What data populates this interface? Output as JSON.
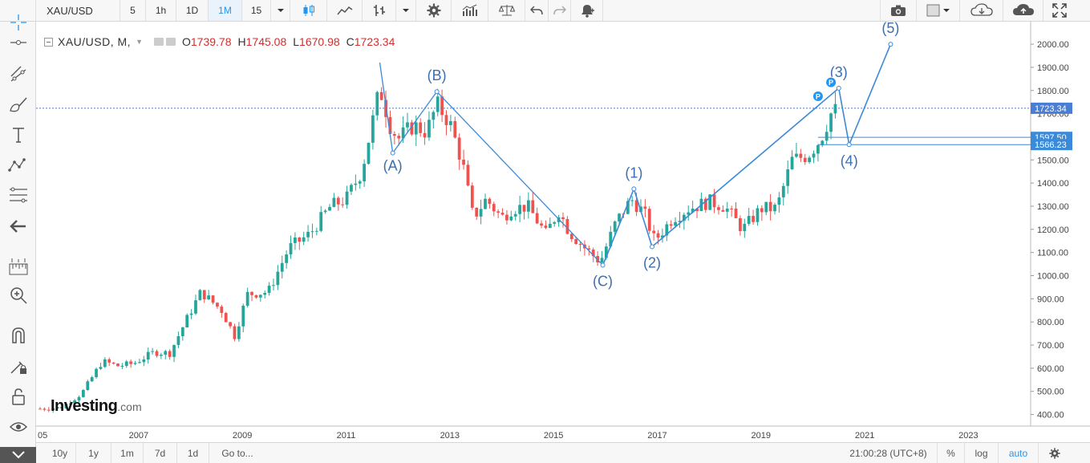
{
  "toolbar": {
    "symbol": "XAU/USD",
    "intervals": [
      "5",
      "1h",
      "1D",
      "1M",
      "15"
    ],
    "active_interval": "1M",
    "icons": [
      "candlestick-icon",
      "area-chart-icon",
      "bar-chart-icon",
      "settings-gear-icon",
      "indicators-icon",
      "scales-icon",
      "undo-icon",
      "redo-icon",
      "alert-icon",
      "camera-icon",
      "layout-icon",
      "cloud-download-icon",
      "cloud-upload-icon",
      "fullscreen-icon"
    ]
  },
  "sidebar": {
    "tools": [
      "crosshair-icon",
      "horizontal-line-icon",
      "trend-lines-icon",
      "brush-icon",
      "text-icon",
      "patterns-icon",
      "fib-tools-icon",
      "back-arrow-icon",
      "ruler-icon",
      "zoom-icon",
      "magnet-icon",
      "lock-drawing-icon",
      "lock-icon",
      "eye-icon",
      "collapse-icon"
    ]
  },
  "legend": {
    "symbol": "XAU/USD, M,",
    "open_label": "O",
    "open": "1739.78",
    "high_label": "H",
    "high": "1745.08",
    "low_label": "L",
    "low": "1670.98",
    "close_label": "C",
    "close": "1723.34"
  },
  "price_axis": {
    "ticks": [
      "2000.00",
      "1900.00",
      "1800.00",
      "1700.00",
      "1600.00",
      "1500.00",
      "1400.00",
      "1300.00",
      "1200.00",
      "1100.00",
      "1000.00",
      "900.00",
      "800.00",
      "700.00",
      "600.00",
      "500.00",
      "400.00"
    ],
    "last_price_label": "1723.34",
    "level_1_label": "1597.50",
    "level_2_label": "1566.23"
  },
  "time_axis": {
    "ticks": [
      "05",
      "2007",
      "2009",
      "2011",
      "2013",
      "2015",
      "2017",
      "2019",
      "2021",
      "2023"
    ]
  },
  "waves": {
    "a": "(A)",
    "b": "(B)",
    "c": "(C)",
    "w1": "(1)",
    "w2": "(2)",
    "w3": "(3)",
    "w4": "(4)",
    "w5": "(5)",
    "marker": "P"
  },
  "watermark": {
    "brand": "Investing",
    "tld": ".com"
  },
  "bottombar": {
    "ranges": [
      "10y",
      "1y",
      "1m",
      "7d",
      "1d"
    ],
    "goto": "Go to...",
    "time": "21:00:28 (UTC+8)",
    "percent": "%",
    "log": "log",
    "auto": "auto"
  },
  "colors": {
    "up": "#26a69a",
    "down": "#ef5350",
    "wave": "#3b8ad9",
    "last_price_badge": "#4a7dd4",
    "level_badge": "#3b8ad9"
  },
  "chart_data": {
    "type": "candlestick",
    "symbol": "XAU/USD",
    "interval": "M",
    "ylim": [
      350,
      2080
    ],
    "x_range": [
      2005.1,
      2024.2
    ],
    "yticks": [
      2000,
      1900,
      1800,
      1700,
      1600,
      1500,
      1400,
      1300,
      1200,
      1100,
      1000,
      900,
      800,
      700,
      600,
      500,
      400
    ],
    "xticks": [
      2005,
      2007,
      2009,
      2011,
      2013,
      2015,
      2017,
      2019,
      2021,
      2023
    ],
    "last_price": 1723.34,
    "levels": [
      1597.5,
      1566.23
    ],
    "price_path": [
      [
        2005.1,
        425
      ],
      [
        2005.5,
        430
      ],
      [
        2005.9,
        490
      ],
      [
        2006.3,
        630
      ],
      [
        2006.6,
        610
      ],
      [
        2006.9,
        620
      ],
      [
        2007.3,
        670
      ],
      [
        2007.6,
        665
      ],
      [
        2007.9,
        800
      ],
      [
        2008.2,
        930
      ],
      [
        2008.6,
        850
      ],
      [
        2008.85,
        740
      ],
      [
        2009.1,
        920
      ],
      [
        2009.5,
        930
      ],
      [
        2009.9,
        1120
      ],
      [
        2010.3,
        1180
      ],
      [
        2010.7,
        1300
      ],
      [
        2011.0,
        1330
      ],
      [
        2011.3,
        1450
      ],
      [
        2011.65,
        1810
      ],
      [
        2011.85,
        1650
      ],
      [
        2012.0,
        1590
      ],
      [
        2012.3,
        1650
      ],
      [
        2012.55,
        1620
      ],
      [
        2012.75,
        1740
      ],
      [
        2013.0,
        1660
      ],
      [
        2013.25,
        1480
      ],
      [
        2013.45,
        1250
      ],
      [
        2013.7,
        1330
      ],
      [
        2014.0,
        1250
      ],
      [
        2014.2,
        1290
      ],
      [
        2014.5,
        1300
      ],
      [
        2014.85,
        1180
      ],
      [
        2015.1,
        1280
      ],
      [
        2015.3,
        1190
      ],
      [
        2015.6,
        1120
      ],
      [
        2015.9,
        1060
      ],
      [
        2016.2,
        1230
      ],
      [
        2016.5,
        1330
      ],
      [
        2016.75,
        1270
      ],
      [
        2016.95,
        1150
      ],
      [
        2017.3,
        1250
      ],
      [
        2017.6,
        1290
      ],
      [
        2018.0,
        1320
      ],
      [
        2018.3,
        1300
      ],
      [
        2018.65,
        1200
      ],
      [
        2019.0,
        1290
      ],
      [
        2019.3,
        1290
      ],
      [
        2019.6,
        1500
      ],
      [
        2019.9,
        1520
      ],
      [
        2020.15,
        1590
      ],
      [
        2020.35,
        1700
      ],
      [
        2020.5,
        1723
      ]
    ],
    "waves": [
      {
        "label": "(A)",
        "x": 2011.9,
        "y": 1530
      },
      {
        "label": "(B)",
        "x": 2012.75,
        "y": 1795
      },
      {
        "label": "(C)",
        "x": 2015.95,
        "y": 1045
      },
      {
        "label": "(1)",
        "x": 2016.55,
        "y": 1375
      },
      {
        "label": "(2)",
        "x": 2016.9,
        "y": 1125
      },
      {
        "label": "(3)",
        "x": 2020.5,
        "y": 1810
      },
      {
        "label": "(4)",
        "x": 2020.7,
        "y": 1566
      },
      {
        "label": "(5)",
        "x": 2021.5,
        "y": 2000
      }
    ]
  }
}
